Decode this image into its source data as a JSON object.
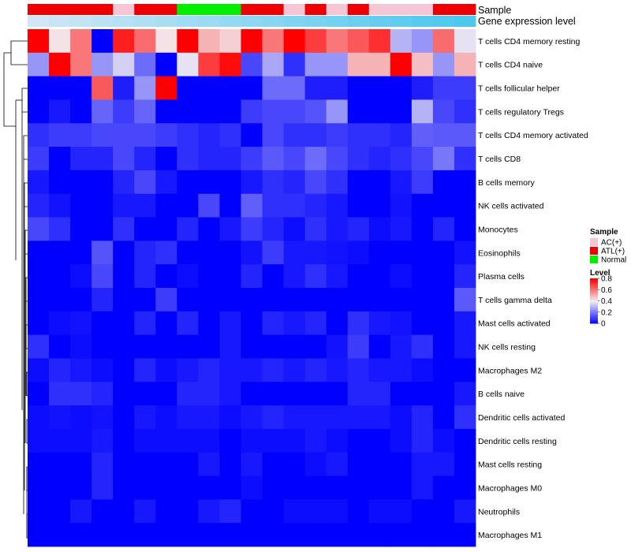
{
  "chart_data": {
    "type": "heatmap",
    "title": "",
    "annotation_tracks": [
      "Sample",
      "Gene expression level"
    ],
    "columns": 21,
    "sample_groups": [
      "ATL(+)",
      "ATL(+)",
      "ATL(+)",
      "ATL(+)",
      "AC(+)",
      "ATL(+)",
      "ATL(+)",
      "Normal",
      "Normal",
      "Normal",
      "ATL(+)",
      "ATL(+)",
      "AC(+)",
      "ATL(+)",
      "AC(+)",
      "ATL(+)",
      "AC(+)",
      "AC(+)",
      "AC(+)",
      "ATL(+)",
      "ATL(+)"
    ],
    "gene_expression_level": [
      0.0,
      0.05,
      0.1,
      0.15,
      0.2,
      0.25,
      0.3,
      0.35,
      0.4,
      0.45,
      0.5,
      0.55,
      0.6,
      0.65,
      0.7,
      0.75,
      0.8,
      0.85,
      0.9,
      0.95,
      1.0
    ],
    "rows": [
      {
        "name": "T cells CD4 memory resting",
        "values": [
          0.8,
          0.42,
          0.6,
          0.0,
          0.75,
          0.62,
          0.42,
          0.8,
          0.5,
          0.45,
          0.8,
          0.6,
          0.8,
          0.7,
          0.6,
          0.65,
          0.72,
          0.3,
          0.25,
          0.62,
          0.38
        ]
      },
      {
        "name": "T cells CD4 naive",
        "values": [
          0.25,
          0.8,
          0.6,
          0.25,
          0.35,
          0.18,
          0.0,
          0.38,
          0.7,
          0.78,
          0.12,
          0.28,
          0.08,
          0.25,
          0.25,
          0.5,
          0.5,
          0.8,
          0.48,
          0.25,
          0.5
        ]
      },
      {
        "name": "T cells follicular helper",
        "values": [
          0.0,
          0.0,
          0.0,
          0.65,
          0.05,
          0.25,
          0.8,
          0.0,
          0.0,
          0.0,
          0.0,
          0.18,
          0.18,
          0.05,
          0.05,
          0.0,
          0.0,
          0.0,
          0.05,
          0.1,
          0.1
        ]
      },
      {
        "name": "T cells regulatory  Tregs",
        "values": [
          0.0,
          0.04,
          0.0,
          0.17,
          0.1,
          0.17,
          0.0,
          0.0,
          0.0,
          0.0,
          0.1,
          0.12,
          0.12,
          0.14,
          0.25,
          0.0,
          0.0,
          0.0,
          0.3,
          0.12,
          0.08
        ]
      },
      {
        "name": "T cells CD4 memory activated",
        "values": [
          0.08,
          0.1,
          0.1,
          0.12,
          0.12,
          0.12,
          0.1,
          0.08,
          0.06,
          0.08,
          0.0,
          0.12,
          0.08,
          0.08,
          0.1,
          0.08,
          0.08,
          0.06,
          0.16,
          0.15,
          0.15
        ]
      },
      {
        "name": "T cells CD8",
        "values": [
          0.1,
          0.0,
          0.06,
          0.06,
          0.12,
          0.06,
          0.0,
          0.08,
          0.06,
          0.06,
          0.1,
          0.15,
          0.12,
          0.18,
          0.12,
          0.08,
          0.06,
          0.08,
          0.12,
          0.2,
          0.08
        ]
      },
      {
        "name": "B cells memory",
        "values": [
          0.04,
          0.0,
          0.0,
          0.0,
          0.06,
          0.12,
          0.04,
          0.0,
          0.0,
          0.0,
          0.04,
          0.08,
          0.06,
          0.12,
          0.08,
          0.0,
          0.0,
          0.04,
          0.1,
          0.0,
          0.0
        ]
      },
      {
        "name": "NK cells activated",
        "values": [
          0.06,
          0.03,
          0.0,
          0.0,
          0.04,
          0.04,
          0.0,
          0.0,
          0.12,
          0.0,
          0.16,
          0.08,
          0.08,
          0.06,
          0.04,
          0.0,
          0.0,
          0.03,
          0.0,
          0.0,
          0.0
        ]
      },
      {
        "name": "Monocytes",
        "values": [
          0.12,
          0.08,
          0.0,
          0.0,
          0.08,
          0.0,
          0.0,
          0.06,
          0.0,
          0.04,
          0.1,
          0.06,
          0.02,
          0.08,
          0.04,
          0.06,
          0.02,
          0.04,
          0.0,
          0.06,
          0.0
        ]
      },
      {
        "name": "Eosinophils",
        "values": [
          0.0,
          0.0,
          0.0,
          0.14,
          0.0,
          0.06,
          0.08,
          0.0,
          0.0,
          0.0,
          0.03,
          0.1,
          0.04,
          0.04,
          0.03,
          0.02,
          0.0,
          0.0,
          0.0,
          0.0,
          0.03
        ]
      },
      {
        "name": "Plasma cells",
        "values": [
          0.0,
          0.0,
          0.02,
          0.12,
          0.0,
          0.06,
          0.0,
          0.02,
          0.0,
          0.0,
          0.06,
          0.0,
          0.04,
          0.08,
          0.04,
          0.0,
          0.0,
          0.02,
          0.0,
          0.0,
          0.06
        ]
      },
      {
        "name": "T cells gamma delta",
        "values": [
          0.0,
          0.0,
          0.0,
          0.06,
          0.0,
          0.0,
          0.1,
          0.0,
          0.0,
          0.0,
          0.0,
          0.0,
          0.0,
          0.0,
          0.0,
          0.0,
          0.0,
          0.0,
          0.0,
          0.0,
          0.15
        ]
      },
      {
        "name": "Mast cells activated",
        "values": [
          0.0,
          0.02,
          0.03,
          0.0,
          0.0,
          0.06,
          0.0,
          0.06,
          0.0,
          0.04,
          0.0,
          0.06,
          0.04,
          0.06,
          0.0,
          0.08,
          0.04,
          0.03,
          0.0,
          0.0,
          0.04
        ]
      },
      {
        "name": "NK cells resting",
        "values": [
          0.08,
          0.0,
          0.02,
          0.0,
          0.0,
          0.0,
          0.0,
          0.0,
          0.0,
          0.04,
          0.0,
          0.0,
          0.0,
          0.0,
          0.03,
          0.1,
          0.0,
          0.04,
          0.08,
          0.0,
          0.04
        ]
      },
      {
        "name": "Macrophages M2",
        "values": [
          0.02,
          0.06,
          0.04,
          0.02,
          0.0,
          0.06,
          0.02,
          0.04,
          0.06,
          0.04,
          0.04,
          0.06,
          0.04,
          0.06,
          0.04,
          0.06,
          0.04,
          0.04,
          0.02,
          0.0,
          0.0
        ]
      },
      {
        "name": "B cells naive",
        "values": [
          0.0,
          0.08,
          0.08,
          0.06,
          0.0,
          0.0,
          0.0,
          0.06,
          0.06,
          0.04,
          0.0,
          0.0,
          0.0,
          0.0,
          0.0,
          0.06,
          0.06,
          0.0,
          0.0,
          0.0,
          0.04
        ]
      },
      {
        "name": "Dendritic cells activated",
        "values": [
          0.02,
          0.03,
          0.02,
          0.03,
          0.0,
          0.04,
          0.02,
          0.04,
          0.04,
          0.02,
          0.04,
          0.06,
          0.04,
          0.04,
          0.04,
          0.04,
          0.04,
          0.02,
          0.06,
          0.0,
          0.08
        ]
      },
      {
        "name": "Dendritic cells resting",
        "values": [
          0.02,
          0.02,
          0.02,
          0.04,
          0.0,
          0.02,
          0.02,
          0.02,
          0.02,
          0.0,
          0.02,
          0.02,
          0.02,
          0.04,
          0.02,
          0.0,
          0.0,
          0.02,
          0.06,
          0.02,
          0.0
        ]
      },
      {
        "name": "Mast cells resting",
        "values": [
          0.0,
          0.0,
          0.0,
          0.06,
          0.0,
          0.0,
          0.0,
          0.0,
          0.04,
          0.0,
          0.04,
          0.0,
          0.0,
          0.02,
          0.04,
          0.0,
          0.0,
          0.0,
          0.04,
          0.04,
          0.0
        ]
      },
      {
        "name": "Macrophages M0",
        "values": [
          0.0,
          0.0,
          0.0,
          0.06,
          0.0,
          0.0,
          0.0,
          0.0,
          0.0,
          0.0,
          0.02,
          0.0,
          0.0,
          0.0,
          0.0,
          0.0,
          0.0,
          0.0,
          0.04,
          0.0,
          0.0
        ]
      },
      {
        "name": "Neutrophils",
        "values": [
          0.0,
          0.0,
          0.04,
          0.0,
          0.0,
          0.04,
          0.0,
          0.0,
          0.04,
          0.06,
          0.0,
          0.0,
          0.02,
          0.02,
          0.02,
          0.0,
          0.02,
          0.02,
          0.0,
          0.0,
          0.04
        ]
      },
      {
        "name": "Macrophages M1",
        "values": [
          0.0,
          0.0,
          0.0,
          0.0,
          0.0,
          0.0,
          0.0,
          0.0,
          0.0,
          0.0,
          0.0,
          0.0,
          0.0,
          0.0,
          0.0,
          0.0,
          0.0,
          0.0,
          0.0,
          0.0,
          0.0
        ]
      }
    ],
    "legend": {
      "sample": {
        "title": "Sample",
        "entries": [
          {
            "label": "AC(+)",
            "color": "#f7c6d6"
          },
          {
            "label": "ATL(+)",
            "color": "#ee0000"
          },
          {
            "label": "Normal",
            "color": "#00ee00"
          }
        ]
      },
      "level": {
        "title": "Level",
        "ticks": [
          "0.8",
          "0.6",
          "0.4",
          "0.2",
          "0"
        ],
        "range": [
          0,
          0.8
        ]
      }
    },
    "colors": {
      "low": "#0000ff",
      "mid": "#f2eef2",
      "high": "#ff0000",
      "gene_low": "#cfe7f7",
      "gene_high": "#4cc7ee"
    }
  }
}
